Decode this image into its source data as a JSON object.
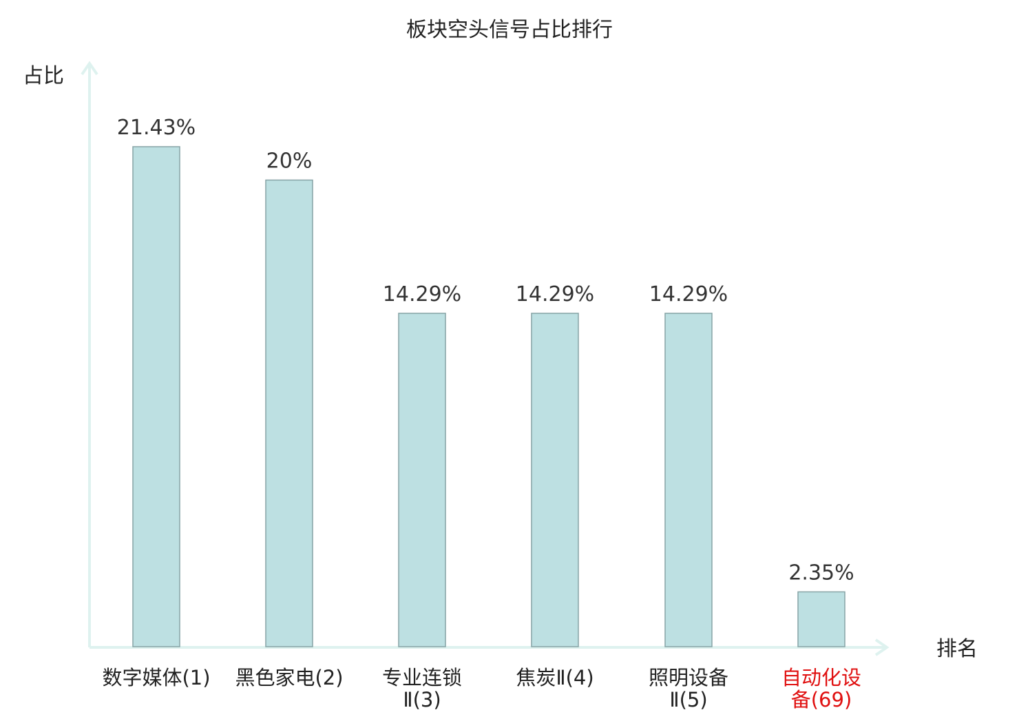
{
  "chart_data": {
    "type": "bar",
    "title": "板块空头信号占比排行",
    "ylabel": "占比",
    "xlabel": "排名",
    "categories": [
      [
        "数字媒体(1)"
      ],
      [
        "黑色家电(2)"
      ],
      [
        "专业连锁",
        "Ⅱ(3)"
      ],
      [
        "焦炭Ⅱ(4)"
      ],
      [
        "照明设备",
        "Ⅱ(5)"
      ],
      [
        "自动化设",
        "备(69)"
      ]
    ],
    "values": [
      21.43,
      20,
      14.29,
      14.29,
      14.29,
      2.35
    ],
    "value_labels": [
      "21.43%",
      "20%",
      "14.29%",
      "14.29%",
      "14.29%",
      "2.35%"
    ],
    "highlight_index": 5,
    "ylim": [
      0,
      25
    ],
    "grid": false,
    "colors": {
      "bar_fill": "#bde0e2",
      "bar_stroke": "#86a3a5",
      "axis": "#def2ef",
      "text": "#222222",
      "value_label": "#333333",
      "highlight": "#e01010"
    }
  }
}
